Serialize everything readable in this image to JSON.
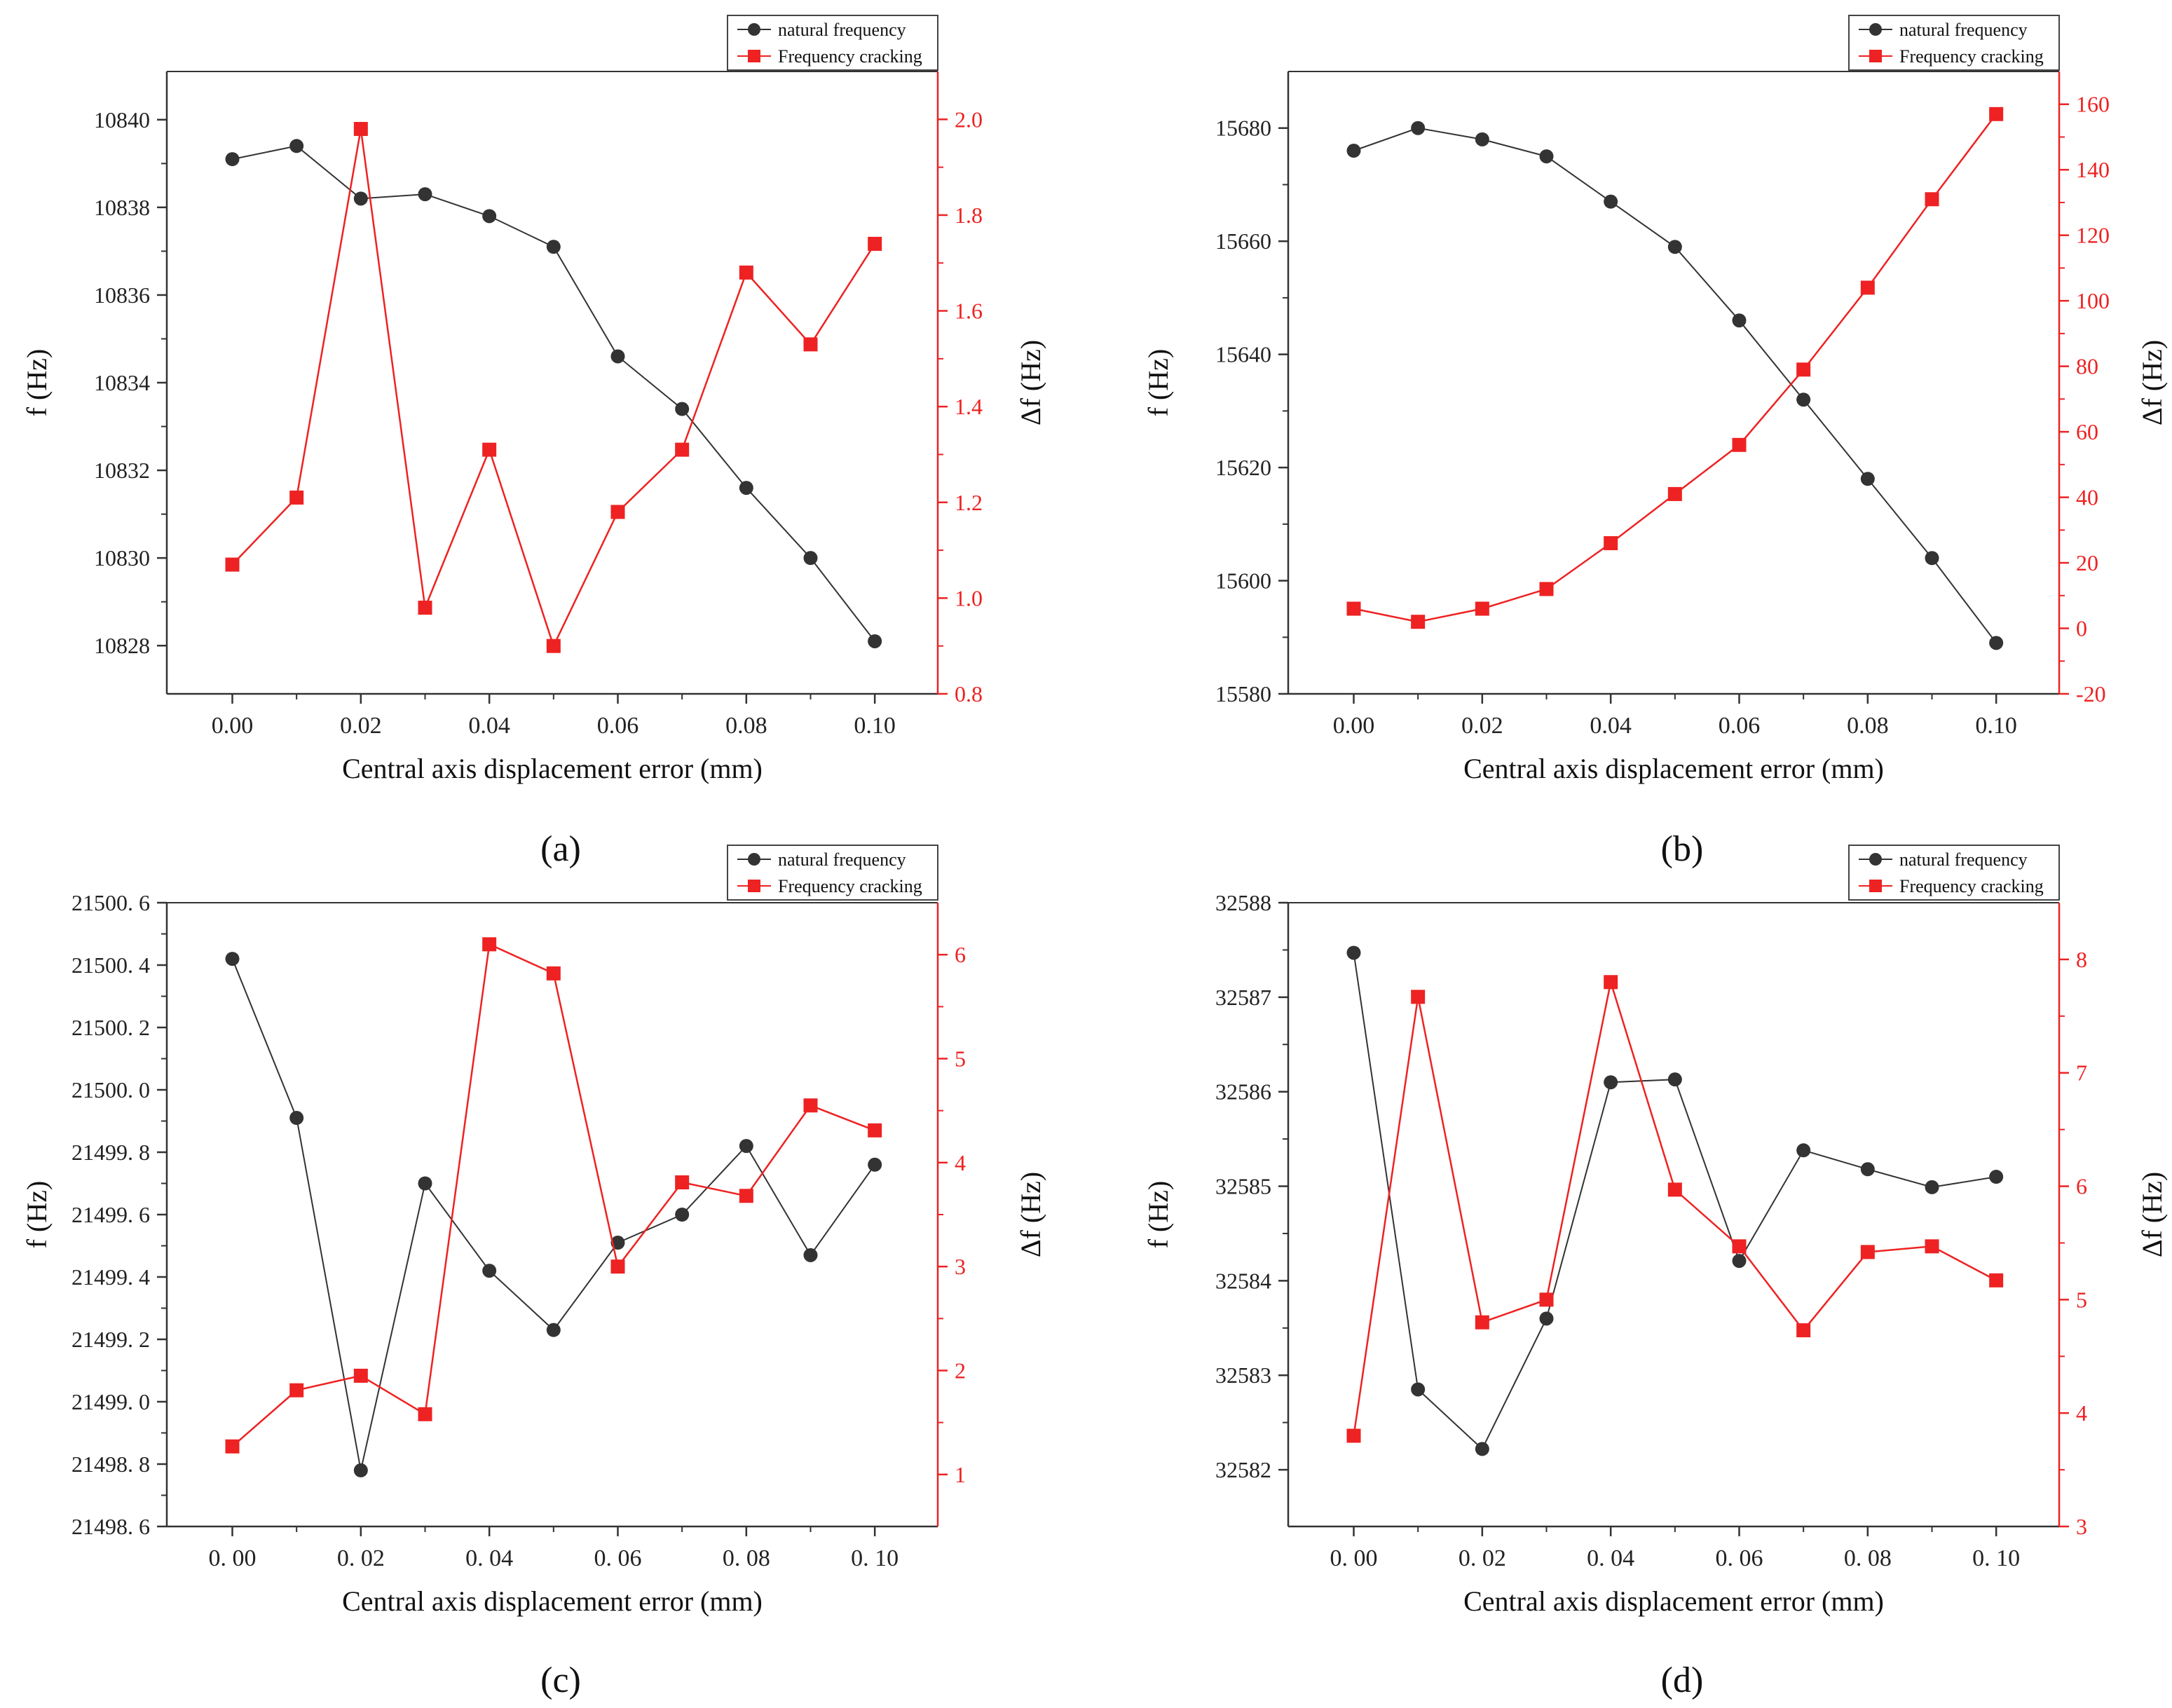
{
  "chart_data": [
    {
      "id": "a",
      "type": "line",
      "caption": "(a)",
      "xlabel": "Central axis displacement error (mm)",
      "ylabel_left": "f (Hz)",
      "ylabel_right": "Δf (Hz)",
      "x": [
        0.0,
        0.01,
        0.02,
        0.03,
        0.04,
        0.05,
        0.06,
        0.07,
        0.08,
        0.09,
        0.1
      ],
      "xticks": [
        0.0,
        0.02,
        0.04,
        0.06,
        0.08,
        0.1
      ],
      "xtick_labels": [
        "0.00",
        "0.02",
        "0.04",
        "0.06",
        "0.08",
        "0.10"
      ],
      "xlim": [
        -0.0102,
        0.1098
      ],
      "ylim_left": [
        10826.9,
        10841.1
      ],
      "yticks_left": [
        10828,
        10830,
        10832,
        10834,
        10836,
        10838,
        10840
      ],
      "ytick_labels_left": [
        "10828",
        "10830",
        "10832",
        "10834",
        "10836",
        "10838",
        "10840"
      ],
      "ylim_right": [
        0.8,
        2.1
      ],
      "yticks_right": [
        0.8,
        1.0,
        1.2,
        1.4,
        1.6,
        1.8,
        2.0
      ],
      "ytick_labels_right": [
        "0.8",
        "1.0",
        "1.2",
        "1.4",
        "1.6",
        "1.8",
        "2.0"
      ],
      "series": [
        {
          "name": "natural frequency",
          "axis": "left",
          "color": "#333333",
          "marker": "circle",
          "values": [
            10839.1,
            10839.4,
            10838.2,
            10838.3,
            10837.8,
            10837.1,
            10834.6,
            10833.4,
            10831.6,
            10830.0,
            10828.1
          ]
        },
        {
          "name": "Frequency cracking",
          "axis": "right",
          "color": "#ee2222",
          "marker": "square",
          "values": [
            1.07,
            1.21,
            1.98,
            0.98,
            1.31,
            0.9,
            1.18,
            1.31,
            1.68,
            1.53,
            1.74
          ]
        }
      ],
      "legend": "top-right"
    },
    {
      "id": "b",
      "type": "line",
      "caption": "(b)",
      "xlabel": "Central axis displacement error (mm)",
      "ylabel_left": "f (Hz)",
      "ylabel_right": "Δf (Hz)",
      "x": [
        0.0,
        0.01,
        0.02,
        0.03,
        0.04,
        0.05,
        0.06,
        0.07,
        0.08,
        0.09,
        0.1
      ],
      "xticks": [
        0.0,
        0.02,
        0.04,
        0.06,
        0.08,
        0.1
      ],
      "xtick_labels": [
        "0.00",
        "0.02",
        "0.04",
        "0.06",
        "0.08",
        "0.10"
      ],
      "xlim": [
        -0.0102,
        0.1098
      ],
      "ylim_left": [
        15580,
        15690
      ],
      "yticks_left": [
        15580,
        15600,
        15620,
        15640,
        15660,
        15680
      ],
      "ytick_labels_left": [
        "15580",
        "15600",
        "15620",
        "15640",
        "15660",
        "15680"
      ],
      "ylim_right": [
        -20,
        170
      ],
      "yticks_right": [
        -20,
        0,
        20,
        40,
        60,
        80,
        100,
        120,
        140,
        160
      ],
      "ytick_labels_right": [
        "-20",
        "0",
        "20",
        "40",
        "60",
        "80",
        "100",
        "120",
        "140",
        "160"
      ],
      "series": [
        {
          "name": "natural frequency",
          "axis": "left",
          "color": "#333333",
          "marker": "circle",
          "values": [
            15676,
            15680,
            15678,
            15675,
            15667,
            15659,
            15646,
            15632,
            15618,
            15604,
            15589
          ]
        },
        {
          "name": "Frequency cracking",
          "axis": "right",
          "color": "#ee2222",
          "marker": "square",
          "values": [
            6,
            2,
            6,
            12,
            26,
            41,
            56,
            79,
            104,
            131,
            157
          ]
        }
      ],
      "legend": "top-right"
    },
    {
      "id": "c",
      "type": "line",
      "caption": "(c)",
      "xlabel": "Central axis displacement error (mm)",
      "ylabel_left": "f (Hz)",
      "ylabel_right": "Δf (Hz)",
      "x": [
        0.0,
        0.01,
        0.02,
        0.03,
        0.04,
        0.05,
        0.06,
        0.07,
        0.08,
        0.09,
        0.1
      ],
      "xticks": [
        0.0,
        0.02,
        0.04,
        0.06,
        0.08,
        0.1
      ],
      "xtick_labels": [
        "0. 00",
        "0. 02",
        "0. 04",
        "0. 06",
        "0. 08",
        "0. 10"
      ],
      "xlim": [
        -0.0102,
        0.1098
      ],
      "ylim_left": [
        21498.6,
        21500.6
      ],
      "yticks_left": [
        21498.6,
        21498.8,
        21499.0,
        21499.2,
        21499.4,
        21499.6,
        21499.8,
        21500.0,
        21500.2,
        21500.4,
        21500.6
      ],
      "ytick_labels_left": [
        "21498. 6",
        "21498. 8",
        "21499. 0",
        "21499. 2",
        "21499. 4",
        "21499. 6",
        "21499. 8",
        "21500. 0",
        "21500. 2",
        "21500. 4",
        "21500. 6"
      ],
      "ylim_right": [
        0.5,
        6.5
      ],
      "yticks_right": [
        1,
        2,
        3,
        4,
        5,
        6
      ],
      "ytick_labels_right": [
        "1",
        "2",
        "3",
        "4",
        "5",
        "6"
      ],
      "series": [
        {
          "name": "natural frequency",
          "axis": "left",
          "color": "#333333",
          "marker": "circle",
          "values": [
            21500.42,
            21499.91,
            21498.78,
            21499.7,
            21499.42,
            21499.23,
            21499.51,
            21499.6,
            21499.82,
            21499.47,
            21499.76
          ]
        },
        {
          "name": "Frequency cracking",
          "axis": "right",
          "color": "#ee2222",
          "marker": "square",
          "values": [
            1.27,
            1.81,
            1.95,
            1.58,
            6.1,
            5.82,
            3.0,
            3.81,
            3.68,
            4.55,
            4.31
          ]
        }
      ],
      "legend": "top-right"
    },
    {
      "id": "d",
      "type": "line",
      "caption": "(d)",
      "xlabel": "Central axis displacement error (mm)",
      "ylabel_left": "f (Hz)",
      "ylabel_right": "Δf (Hz)",
      "x": [
        0.0,
        0.01,
        0.02,
        0.03,
        0.04,
        0.05,
        0.06,
        0.07,
        0.08,
        0.09,
        0.1
      ],
      "xticks": [
        0.0,
        0.02,
        0.04,
        0.06,
        0.08,
        0.1
      ],
      "xtick_labels": [
        "0. 00",
        "0. 02",
        "0. 04",
        "0. 06",
        "0. 08",
        "0. 10"
      ],
      "xlim": [
        -0.0102,
        0.1098
      ],
      "ylim_left": [
        32581.4,
        32588
      ],
      "yticks_left": [
        32582,
        32583,
        32584,
        32585,
        32586,
        32587,
        32588
      ],
      "ytick_labels_left": [
        "32582",
        "32583",
        "32584",
        "32585",
        "32586",
        "32587",
        "32588"
      ],
      "ylim_right": [
        3,
        8.5
      ],
      "yticks_right": [
        3,
        4,
        5,
        6,
        7,
        8
      ],
      "ytick_labels_right": [
        "3",
        "4",
        "5",
        "6",
        "7",
        "8"
      ],
      "series": [
        {
          "name": "natural frequency",
          "axis": "left",
          "color": "#333333",
          "marker": "circle",
          "values": [
            32587.47,
            32582.85,
            32582.22,
            32583.6,
            32586.1,
            32586.13,
            32584.21,
            32585.38,
            32585.18,
            32584.99,
            32585.1
          ]
        },
        {
          "name": "Frequency cracking",
          "axis": "right",
          "color": "#ee2222",
          "marker": "square",
          "values": [
            3.8,
            7.67,
            4.8,
            5.0,
            7.8,
            5.97,
            5.47,
            4.73,
            5.42,
            5.47,
            5.17
          ]
        }
      ],
      "legend": "top-right"
    }
  ]
}
